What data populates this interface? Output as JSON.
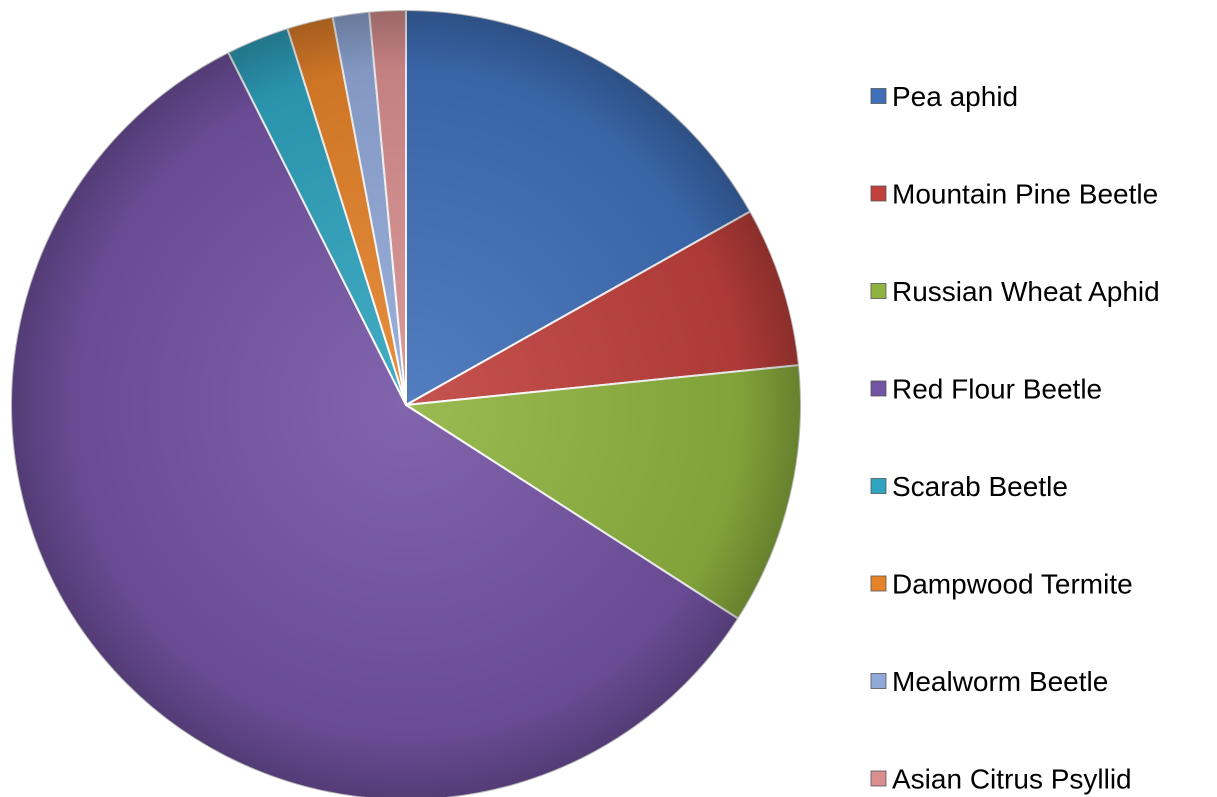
{
  "chart_data": {
    "type": "pie",
    "title": "",
    "legend": "right",
    "start_angle_deg": 0,
    "direction": "clockwise",
    "series": [
      {
        "categories": [
          "Pea aphid",
          "Mountain Pine Beetle",
          "Russian Wheat Aphid",
          "Red Flour Beetle",
          "Scarab Beetle",
          "Dampwood Termite",
          "Mealworm Beetle",
          "Asian Citrus Psyllid"
        ],
        "values": [
          17.0,
          6.6,
          10.8,
          59.0,
          2.6,
          1.9,
          1.5,
          1.5
        ],
        "colors": [
          "#3f6fb8",
          "#c0403c",
          "#8fb33f",
          "#7353a3",
          "#2fa3bf",
          "#e5822a",
          "#91a9d8",
          "#d98f90"
        ]
      }
    ]
  }
}
